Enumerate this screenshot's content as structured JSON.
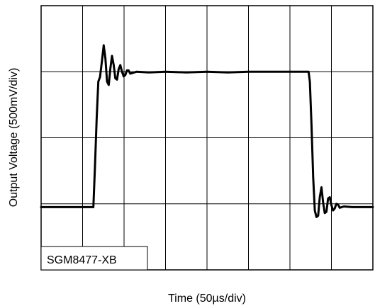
{
  "chart_data": {
    "type": "line",
    "title": "",
    "xlabel": "Time (50µs/div)",
    "ylabel": "Output Voltage (500mV/div)",
    "x_divisions": 8,
    "y_divisions": 4,
    "xlim": [
      0,
      8
    ],
    "ylim": [
      0,
      4
    ],
    "grid": true,
    "annotation": "SGM8477-XB",
    "line_color": "#000000",
    "series": [
      {
        "values": [
          [
            0.0,
            0.95
          ],
          [
            1.26,
            0.95
          ],
          [
            1.3,
            1.6
          ],
          [
            1.34,
            2.3
          ],
          [
            1.38,
            2.85
          ],
          [
            1.42,
            2.92
          ],
          [
            1.47,
            3.18
          ],
          [
            1.51,
            3.4
          ],
          [
            1.55,
            3.2
          ],
          [
            1.59,
            2.85
          ],
          [
            1.63,
            2.8
          ],
          [
            1.67,
            3.05
          ],
          [
            1.71,
            3.24
          ],
          [
            1.75,
            3.1
          ],
          [
            1.79,
            2.9
          ],
          [
            1.83,
            2.88
          ],
          [
            1.87,
            3.04
          ],
          [
            1.91,
            3.1
          ],
          [
            1.95,
            3.0
          ],
          [
            1.99,
            2.93
          ],
          [
            2.03,
            2.95
          ],
          [
            2.07,
            3.02
          ],
          [
            2.11,
            3.02
          ],
          [
            2.15,
            2.97
          ],
          [
            2.2,
            2.98
          ],
          [
            2.3,
            3.0
          ],
          [
            2.6,
            2.99
          ],
          [
            3.0,
            3.0
          ],
          [
            3.5,
            2.99
          ],
          [
            4.0,
            3.0
          ],
          [
            4.5,
            2.99
          ],
          [
            5.0,
            3.0
          ],
          [
            5.5,
            3.0
          ],
          [
            6.0,
            3.0
          ],
          [
            6.45,
            3.0
          ],
          [
            6.48,
            2.85
          ],
          [
            6.52,
            2.2
          ],
          [
            6.56,
            1.4
          ],
          [
            6.6,
            0.9
          ],
          [
            6.64,
            0.8
          ],
          [
            6.68,
            0.82
          ],
          [
            6.72,
            1.1
          ],
          [
            6.76,
            1.25
          ],
          [
            6.8,
            1.02
          ],
          [
            6.84,
            0.86
          ],
          [
            6.88,
            0.88
          ],
          [
            6.92,
            1.08
          ],
          [
            6.96,
            1.1
          ],
          [
            7.0,
            0.98
          ],
          [
            7.04,
            0.9
          ],
          [
            7.08,
            0.93
          ],
          [
            7.12,
            1.0
          ],
          [
            7.16,
            0.99
          ],
          [
            7.2,
            0.94
          ],
          [
            7.3,
            0.96
          ],
          [
            7.5,
            0.95
          ],
          [
            8.0,
            0.95
          ]
        ]
      }
    ]
  }
}
